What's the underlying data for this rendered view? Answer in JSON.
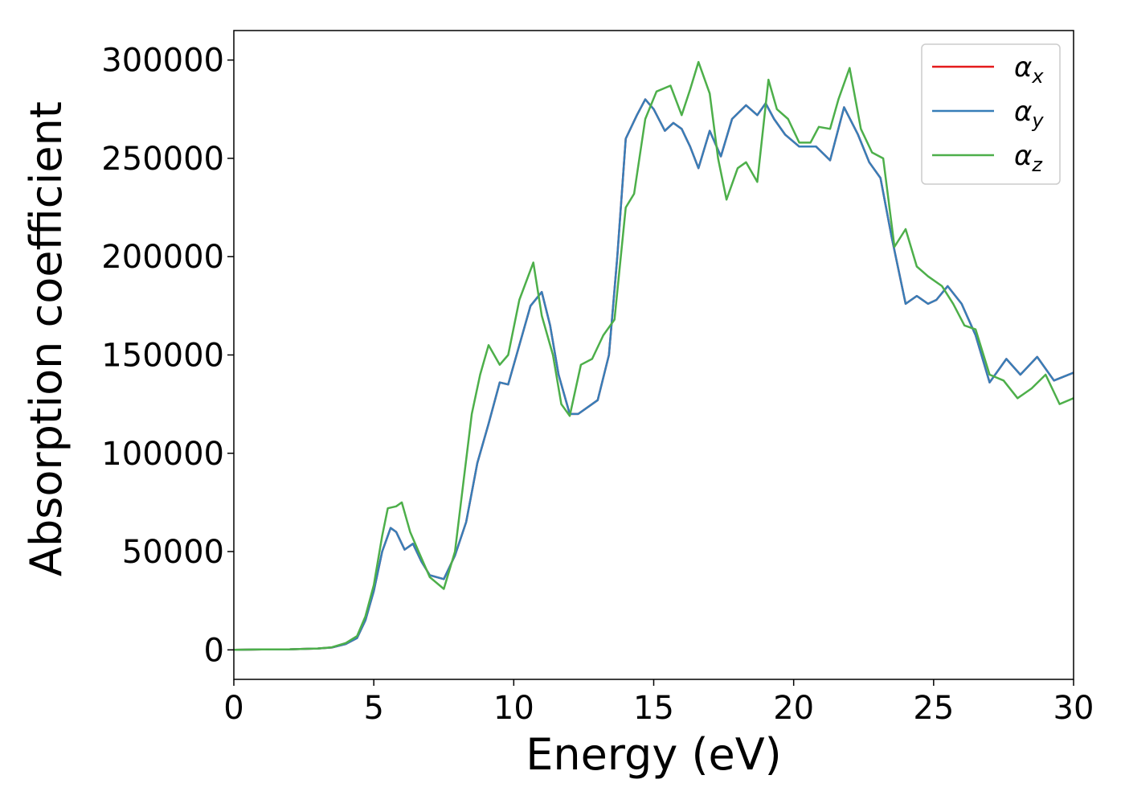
{
  "chart_data": {
    "type": "line",
    "title": "",
    "xlabel": "Energy (eV)",
    "ylabel": "Absorption coefficient",
    "xlim": [
      0,
      30
    ],
    "ylim": [
      -15000,
      315000
    ],
    "xticks": [
      0,
      5,
      10,
      15,
      20,
      25,
      30
    ],
    "yticks": [
      0,
      50000,
      100000,
      150000,
      200000,
      250000,
      300000
    ],
    "grid": false,
    "legend_position": "top-right",
    "series": [
      {
        "name": "α_x",
        "symbol": "α",
        "subscript": "x",
        "color": "#e41a1c",
        "points": [
          [
            0,
            0
          ],
          [
            1,
            200
          ],
          [
            2,
            300
          ],
          [
            3,
            700
          ],
          [
            3.5,
            1200
          ],
          [
            4,
            3000
          ],
          [
            4.4,
            6000
          ],
          [
            4.7,
            15000
          ],
          [
            5,
            30000
          ],
          [
            5.3,
            50000
          ],
          [
            5.6,
            62000
          ],
          [
            5.8,
            60000
          ],
          [
            6.1,
            51000
          ],
          [
            6.4,
            54000
          ],
          [
            6.7,
            45000
          ],
          [
            7,
            38000
          ],
          [
            7.5,
            36000
          ],
          [
            7.9,
            48000
          ],
          [
            8.3,
            65000
          ],
          [
            8.7,
            95000
          ],
          [
            9.1,
            115000
          ],
          [
            9.5,
            136000
          ],
          [
            9.8,
            135000
          ],
          [
            10.2,
            155000
          ],
          [
            10.6,
            175000
          ],
          [
            11,
            182000
          ],
          [
            11.3,
            165000
          ],
          [
            11.6,
            140000
          ],
          [
            12,
            120000
          ],
          [
            12.3,
            120000
          ],
          [
            13,
            127000
          ],
          [
            13.4,
            150000
          ],
          [
            13.7,
            200000
          ],
          [
            14,
            260000
          ],
          [
            14.4,
            272000
          ],
          [
            14.7,
            280000
          ],
          [
            15,
            275000
          ],
          [
            15.4,
            264000
          ],
          [
            15.7,
            268000
          ],
          [
            16,
            265000
          ],
          [
            16.3,
            256000
          ],
          [
            16.6,
            245000
          ],
          [
            17,
            264000
          ],
          [
            17.4,
            251000
          ],
          [
            17.8,
            270000
          ],
          [
            18.3,
            277000
          ],
          [
            18.7,
            272000
          ],
          [
            19,
            278000
          ],
          [
            19.3,
            270000
          ],
          [
            19.7,
            262000
          ],
          [
            20.2,
            256000
          ],
          [
            20.8,
            256000
          ],
          [
            21.3,
            249000
          ],
          [
            21.8,
            276000
          ],
          [
            22.3,
            262000
          ],
          [
            22.7,
            248000
          ],
          [
            23.1,
            240000
          ],
          [
            23.5,
            210000
          ],
          [
            24,
            176000
          ],
          [
            24.4,
            180000
          ],
          [
            24.8,
            176000
          ],
          [
            25.1,
            178000
          ],
          [
            25.5,
            185000
          ],
          [
            26,
            176000
          ],
          [
            26.5,
            160000
          ],
          [
            27,
            136000
          ],
          [
            27.6,
            148000
          ],
          [
            28.1,
            140000
          ],
          [
            28.7,
            149000
          ],
          [
            29.3,
            137000
          ],
          [
            30,
            141000
          ]
        ]
      },
      {
        "name": "α_y",
        "symbol": "α",
        "subscript": "y",
        "color": "#377eb8",
        "points": [
          [
            0,
            0
          ],
          [
            1,
            200
          ],
          [
            2,
            300
          ],
          [
            3,
            700
          ],
          [
            3.5,
            1200
          ],
          [
            4,
            3000
          ],
          [
            4.4,
            6000
          ],
          [
            4.7,
            15000
          ],
          [
            5,
            30000
          ],
          [
            5.3,
            50000
          ],
          [
            5.6,
            62000
          ],
          [
            5.8,
            60000
          ],
          [
            6.1,
            51000
          ],
          [
            6.4,
            54000
          ],
          [
            6.7,
            45000
          ],
          [
            7,
            38000
          ],
          [
            7.5,
            36000
          ],
          [
            7.9,
            48000
          ],
          [
            8.3,
            65000
          ],
          [
            8.7,
            95000
          ],
          [
            9.1,
            115000
          ],
          [
            9.5,
            136000
          ],
          [
            9.8,
            135000
          ],
          [
            10.2,
            155000
          ],
          [
            10.6,
            175000
          ],
          [
            11,
            182000
          ],
          [
            11.3,
            165000
          ],
          [
            11.6,
            140000
          ],
          [
            12,
            120000
          ],
          [
            12.3,
            120000
          ],
          [
            13,
            127000
          ],
          [
            13.4,
            150000
          ],
          [
            13.7,
            200000
          ],
          [
            14,
            260000
          ],
          [
            14.4,
            272000
          ],
          [
            14.7,
            280000
          ],
          [
            15,
            275000
          ],
          [
            15.4,
            264000
          ],
          [
            15.7,
            268000
          ],
          [
            16,
            265000
          ],
          [
            16.3,
            256000
          ],
          [
            16.6,
            245000
          ],
          [
            17,
            264000
          ],
          [
            17.4,
            251000
          ],
          [
            17.8,
            270000
          ],
          [
            18.3,
            277000
          ],
          [
            18.7,
            272000
          ],
          [
            19,
            278000
          ],
          [
            19.3,
            270000
          ],
          [
            19.7,
            262000
          ],
          [
            20.2,
            256000
          ],
          [
            20.8,
            256000
          ],
          [
            21.3,
            249000
          ],
          [
            21.8,
            276000
          ],
          [
            22.3,
            262000
          ],
          [
            22.7,
            248000
          ],
          [
            23.1,
            240000
          ],
          [
            23.5,
            210000
          ],
          [
            24,
            176000
          ],
          [
            24.4,
            180000
          ],
          [
            24.8,
            176000
          ],
          [
            25.1,
            178000
          ],
          [
            25.5,
            185000
          ],
          [
            26,
            176000
          ],
          [
            26.5,
            160000
          ],
          [
            27,
            136000
          ],
          [
            27.6,
            148000
          ],
          [
            28.1,
            140000
          ],
          [
            28.7,
            149000
          ],
          [
            29.3,
            137000
          ],
          [
            30,
            141000
          ]
        ]
      },
      {
        "name": "α_z",
        "symbol": "α",
        "subscript": "z",
        "color": "#4daf4a",
        "points": [
          [
            0,
            0
          ],
          [
            1,
            200
          ],
          [
            2,
            300
          ],
          [
            3,
            700
          ],
          [
            3.5,
            1300
          ],
          [
            4,
            3500
          ],
          [
            4.4,
            7000
          ],
          [
            4.7,
            17000
          ],
          [
            5,
            33000
          ],
          [
            5.3,
            58000
          ],
          [
            5.5,
            72000
          ],
          [
            5.8,
            73000
          ],
          [
            6,
            75000
          ],
          [
            6.3,
            60000
          ],
          [
            6.6,
            50000
          ],
          [
            7,
            37000
          ],
          [
            7.5,
            31000
          ],
          [
            7.9,
            50000
          ],
          [
            8.2,
            85000
          ],
          [
            8.5,
            120000
          ],
          [
            8.8,
            140000
          ],
          [
            9.1,
            155000
          ],
          [
            9.5,
            145000
          ],
          [
            9.8,
            150000
          ],
          [
            10.2,
            178000
          ],
          [
            10.7,
            197000
          ],
          [
            11,
            170000
          ],
          [
            11.4,
            150000
          ],
          [
            11.7,
            125000
          ],
          [
            12,
            119000
          ],
          [
            12.4,
            145000
          ],
          [
            12.8,
            148000
          ],
          [
            13.2,
            160000
          ],
          [
            13.6,
            168000
          ],
          [
            14,
            225000
          ],
          [
            14.3,
            232000
          ],
          [
            14.7,
            270000
          ],
          [
            15.1,
            284000
          ],
          [
            15.6,
            287000
          ],
          [
            16,
            272000
          ],
          [
            16.3,
            285000
          ],
          [
            16.6,
            299000
          ],
          [
            17,
            283000
          ],
          [
            17.3,
            250000
          ],
          [
            17.6,
            229000
          ],
          [
            18,
            245000
          ],
          [
            18.3,
            248000
          ],
          [
            18.7,
            238000
          ],
          [
            19.1,
            290000
          ],
          [
            19.4,
            275000
          ],
          [
            19.8,
            270000
          ],
          [
            20.2,
            258000
          ],
          [
            20.6,
            258000
          ],
          [
            20.9,
            266000
          ],
          [
            21.3,
            265000
          ],
          [
            21.6,
            280000
          ],
          [
            22,
            296000
          ],
          [
            22.4,
            265000
          ],
          [
            22.8,
            253000
          ],
          [
            23.2,
            250000
          ],
          [
            23.6,
            205000
          ],
          [
            24,
            214000
          ],
          [
            24.4,
            195000
          ],
          [
            24.8,
            190000
          ],
          [
            25.3,
            185000
          ],
          [
            25.7,
            176000
          ],
          [
            26.1,
            165000
          ],
          [
            26.5,
            163000
          ],
          [
            27,
            140000
          ],
          [
            27.5,
            137000
          ],
          [
            28,
            128000
          ],
          [
            28.5,
            133000
          ],
          [
            29,
            140000
          ],
          [
            29.5,
            125000
          ],
          [
            30,
            128000
          ]
        ]
      }
    ]
  }
}
